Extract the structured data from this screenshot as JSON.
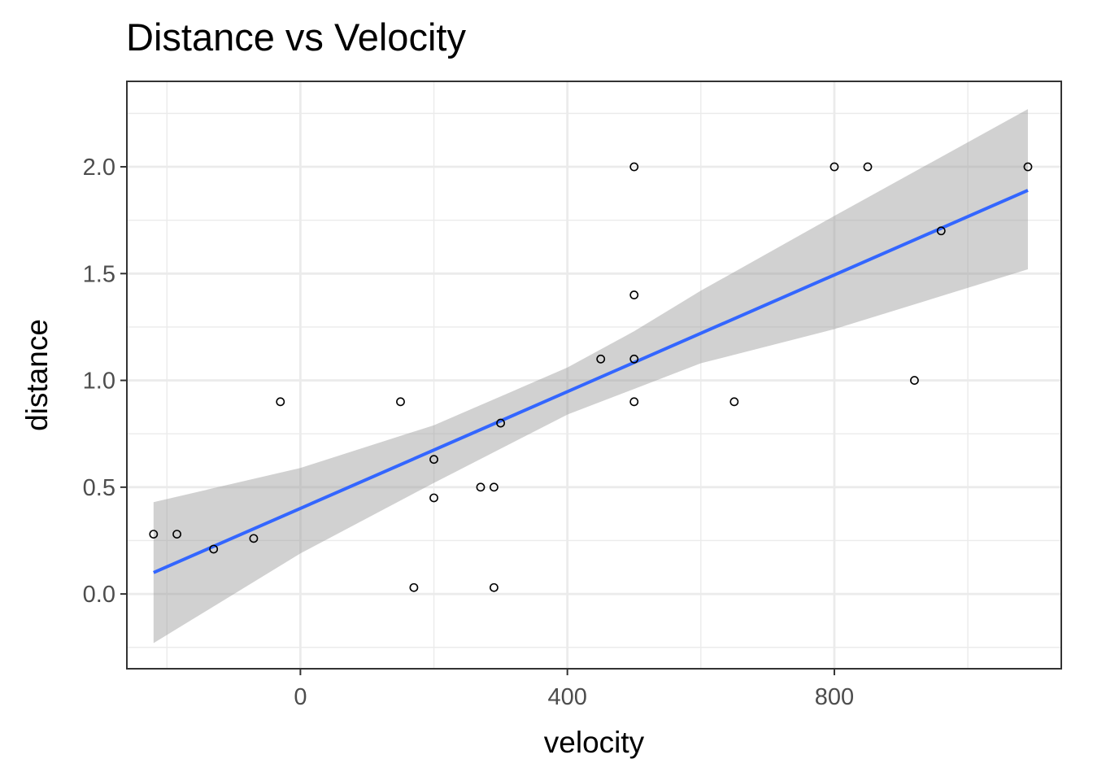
{
  "chart_data": {
    "type": "scatter",
    "title": "Distance vs Velocity",
    "xlabel": "velocity",
    "ylabel": "distance",
    "xlim": [
      -260,
      1140
    ],
    "ylim": [
      -0.35,
      2.4
    ],
    "x_ticks": [
      0,
      400,
      800
    ],
    "x_tick_labels": [
      "0",
      "400",
      "800"
    ],
    "y_ticks": [
      0.0,
      0.5,
      1.0,
      1.5,
      2.0
    ],
    "y_tick_labels": [
      "0.0",
      "0.5",
      "1.0",
      "1.5",
      "2.0"
    ],
    "grid": true,
    "series": [
      {
        "points": [
          {
            "x": -220,
            "y": 0.28
          },
          {
            "x": -185,
            "y": 0.28
          },
          {
            "x": -130,
            "y": 0.21
          },
          {
            "x": -70,
            "y": 0.26
          },
          {
            "x": -30,
            "y": 0.9
          },
          {
            "x": 150,
            "y": 0.9
          },
          {
            "x": 170,
            "y": 0.03
          },
          {
            "x": 200,
            "y": 0.63
          },
          {
            "x": 200,
            "y": 0.45
          },
          {
            "x": 270,
            "y": 0.5
          },
          {
            "x": 290,
            "y": 0.5
          },
          {
            "x": 290,
            "y": 0.03
          },
          {
            "x": 300,
            "y": 0.8
          },
          {
            "x": 450,
            "y": 1.1
          },
          {
            "x": 500,
            "y": 2.0
          },
          {
            "x": 500,
            "y": 1.4
          },
          {
            "x": 500,
            "y": 1.1
          },
          {
            "x": 500,
            "y": 0.9
          },
          {
            "x": 650,
            "y": 0.9
          },
          {
            "x": 800,
            "y": 2.0
          },
          {
            "x": 850,
            "y": 2.0
          },
          {
            "x": 920,
            "y": 1.0
          },
          {
            "x": 960,
            "y": 1.7
          },
          {
            "x": 1090,
            "y": 2.0
          }
        ]
      }
    ],
    "trend_line": {
      "method": "linear",
      "x": [
        -220,
        1090
      ],
      "y": [
        0.1,
        1.89
      ],
      "color": "#3366ff"
    },
    "confidence_band": {
      "color": "#999999",
      "x": [
        -220,
        0,
        200,
        400,
        500,
        600,
        800,
        1090
      ],
      "upper": [
        0.43,
        0.59,
        0.79,
        1.06,
        1.23,
        1.42,
        1.77,
        2.27
      ],
      "lower": [
        -0.23,
        0.19,
        0.52,
        0.84,
        0.96,
        1.08,
        1.24,
        1.52
      ]
    },
    "colors": {
      "panel_border": "#333333",
      "grid": "#ebebeb",
      "point_stroke": "#000000"
    }
  }
}
